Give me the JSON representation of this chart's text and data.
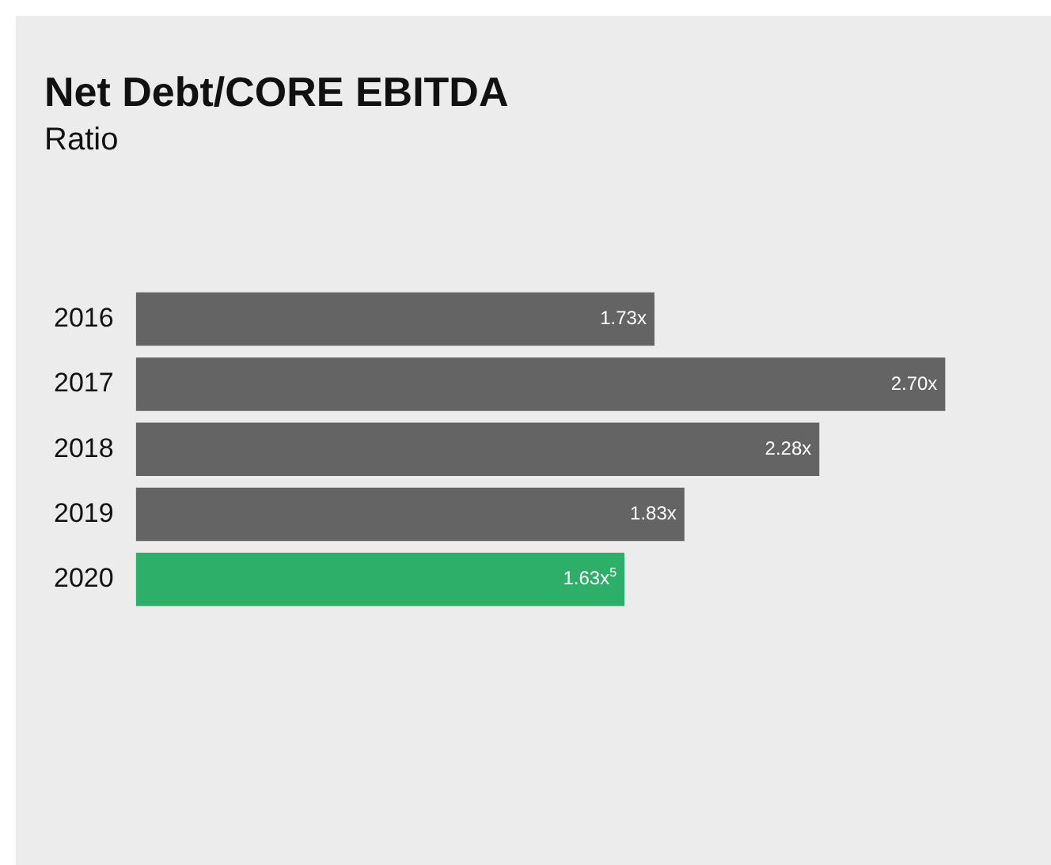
{
  "chart_data": {
    "type": "bar",
    "orientation": "horizontal",
    "title": "Net Debt/CORE EBITDA",
    "subtitle": "Ratio",
    "categories": [
      "2016",
      "2017",
      "2018",
      "2019",
      "2020"
    ],
    "values": [
      1.73,
      2.7,
      2.28,
      1.83,
      1.63
    ],
    "colors": [
      "#646464",
      "#646464",
      "#646464",
      "#646464",
      "#2daf6a"
    ],
    "value_labels": [
      "1.73x",
      "2.70x",
      "2.28x",
      "1.83x",
      "1.63x$^{5}$"
    ]
  }
}
